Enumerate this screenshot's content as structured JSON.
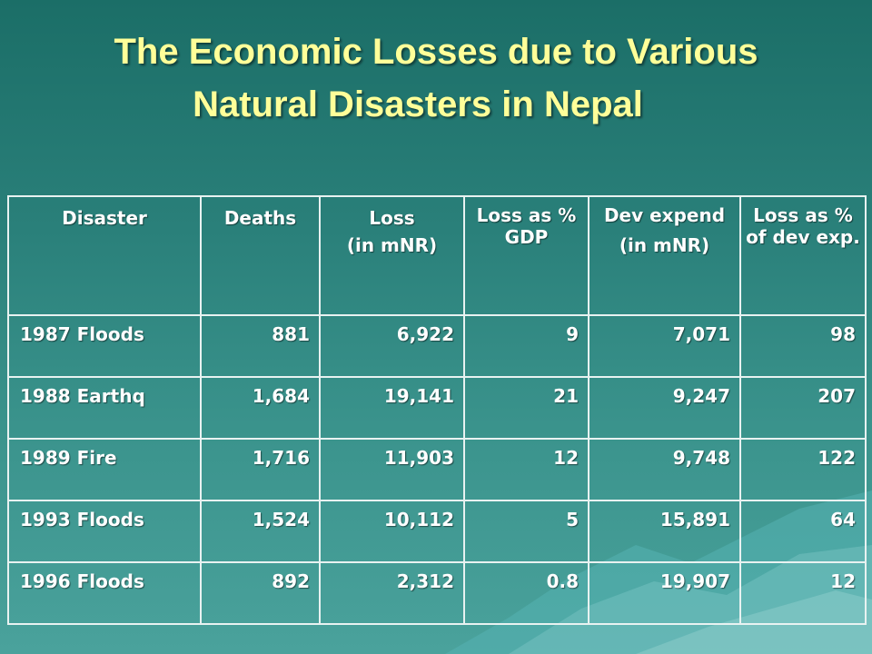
{
  "slide": {
    "title_line1": "The Economic Losses due to Various",
    "title_line2": "Natural Disasters in Nepal"
  },
  "table": {
    "headers": {
      "disaster": "Disaster",
      "deaths": "Deaths",
      "loss_line1": "Loss",
      "loss_line2": "(in mNR)",
      "loss_gdp": "Loss as % GDP",
      "dev_line1": "Dev expend",
      "dev_line2": "(in mNR)",
      "loss_dev": "Loss as % of dev exp."
    },
    "rows": [
      {
        "disaster": "1987 Floods",
        "deaths": "881",
        "loss": "6,922",
        "loss_gdp": "9",
        "dev_expend": "7,071",
        "loss_dev": "98"
      },
      {
        "disaster": "1988 Earthq",
        "deaths": "1,684",
        "loss": "19,141",
        "loss_gdp": "21",
        "dev_expend": "9,247",
        "loss_dev": "207"
      },
      {
        "disaster": "1989 Fire",
        "deaths": "1,716",
        "loss": "11,903",
        "loss_gdp": "12",
        "dev_expend": "9,748",
        "loss_dev": "122"
      },
      {
        "disaster": "1993 Floods",
        "deaths": "1,524",
        "loss": "10,112",
        "loss_gdp": "5",
        "dev_expend": "15,891",
        "loss_dev": "64"
      },
      {
        "disaster": "1996 Floods",
        "deaths": "892",
        "loss": "2,312",
        "loss_gdp": "0.8",
        "dev_expend": "19,907",
        "loss_dev": "12"
      }
    ]
  },
  "colors": {
    "title": "#ffff99",
    "background": "#2a807a",
    "table_text": "#ffffff",
    "grid": "#e8f2f1"
  }
}
